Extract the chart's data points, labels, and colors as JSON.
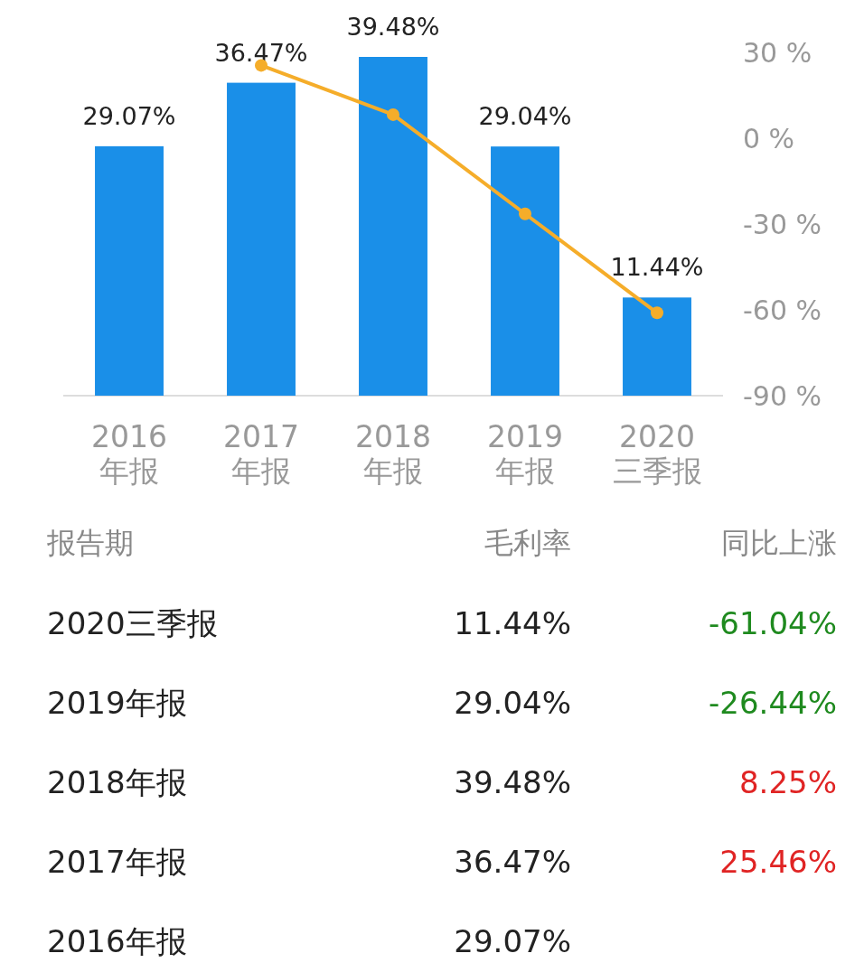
{
  "chart_data": {
    "type": "bar",
    "categories": [
      "2016\n年报",
      "2017\n年报",
      "2018\n年报",
      "2019\n年报",
      "2020\n三季报"
    ],
    "xlabel": "报告期",
    "annotations": [
      "毛利率",
      "同比上涨",
      "-61.04%",
      "-26.44%",
      "8.25%",
      "25.46%"
    ],
    "y2lim": [
      -90,
      30
    ],
    "y2ticks": [
      {
        "value": 30,
        "label": "30 %"
      },
      {
        "value": 0,
        "label": "0 %"
      },
      {
        "value": -30,
        "label": "-30 %"
      },
      {
        "value": -60,
        "label": "-60 %"
      },
      {
        "value": -90,
        "label": "-90 %"
      }
    ],
    "tick_labels": [
      "x",
      "y2"
    ],
    "grid": false,
    "series": [
      {
        "color": "#1a8fe8",
        "values": [
          29.07,
          36.47,
          39.48,
          29.04,
          11.44
        ],
        "value_labels": [
          "29.07%",
          "36.47%",
          "39.48%",
          "29.04%",
          "11.44%"
        ]
      },
      {
        "type": "line",
        "axis": "y2",
        "color": "#f5ad2a",
        "marker": "circle",
        "line_style": "solid",
        "values": [
          null,
          25.46,
          8.25,
          -26.44,
          -61.04
        ]
      }
    ]
  }
}
